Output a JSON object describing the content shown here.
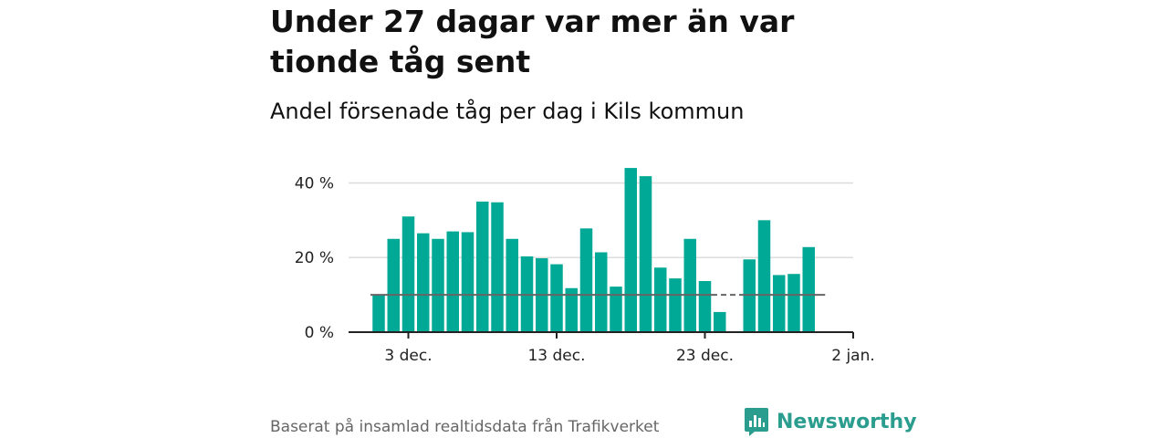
{
  "title": "Under 27 dagar var mer än var tionde tåg sent",
  "subtitle": "Andel försenade tåg per dag i Kils kommun",
  "source": "Baserat på insamlad realtidsdata från Trafikverket",
  "brand": {
    "name": "Newsworthy",
    "icon": "newsworthy-logo-icon"
  },
  "colors": {
    "bar": "#00a896",
    "reference_line": "#666666",
    "grid": "#dddddd",
    "axis": "#222222"
  },
  "chart_data": {
    "type": "bar",
    "x_start": "2023-12-01",
    "values": [
      10,
      25,
      31,
      26.5,
      25,
      27,
      26.8,
      35,
      34.8,
      25,
      20.3,
      19.8,
      18.2,
      11.8,
      27.8,
      21.4,
      12.2,
      44,
      41.8,
      17.3,
      14.4,
      25,
      13.7,
      5.4,
      null,
      19.5,
      30,
      15.3,
      15.6,
      22.8
    ],
    "reference_value": 10,
    "xticks": [
      {
        "label": "3 dec.",
        "date": "2023-12-03"
      },
      {
        "label": "13 dec.",
        "date": "2023-12-13"
      },
      {
        "label": "23 dec.",
        "date": "2023-12-23"
      },
      {
        "label": "2 jan.",
        "date": "2024-01-02"
      }
    ],
    "yticks": [
      {
        "value": 0,
        "label": "0 %"
      },
      {
        "value": 20,
        "label": "20 %"
      },
      {
        "value": 40,
        "label": "40 %"
      }
    ],
    "ylim": [
      0,
      45
    ],
    "xlabel": "",
    "ylabel": "",
    "grid": true
  }
}
